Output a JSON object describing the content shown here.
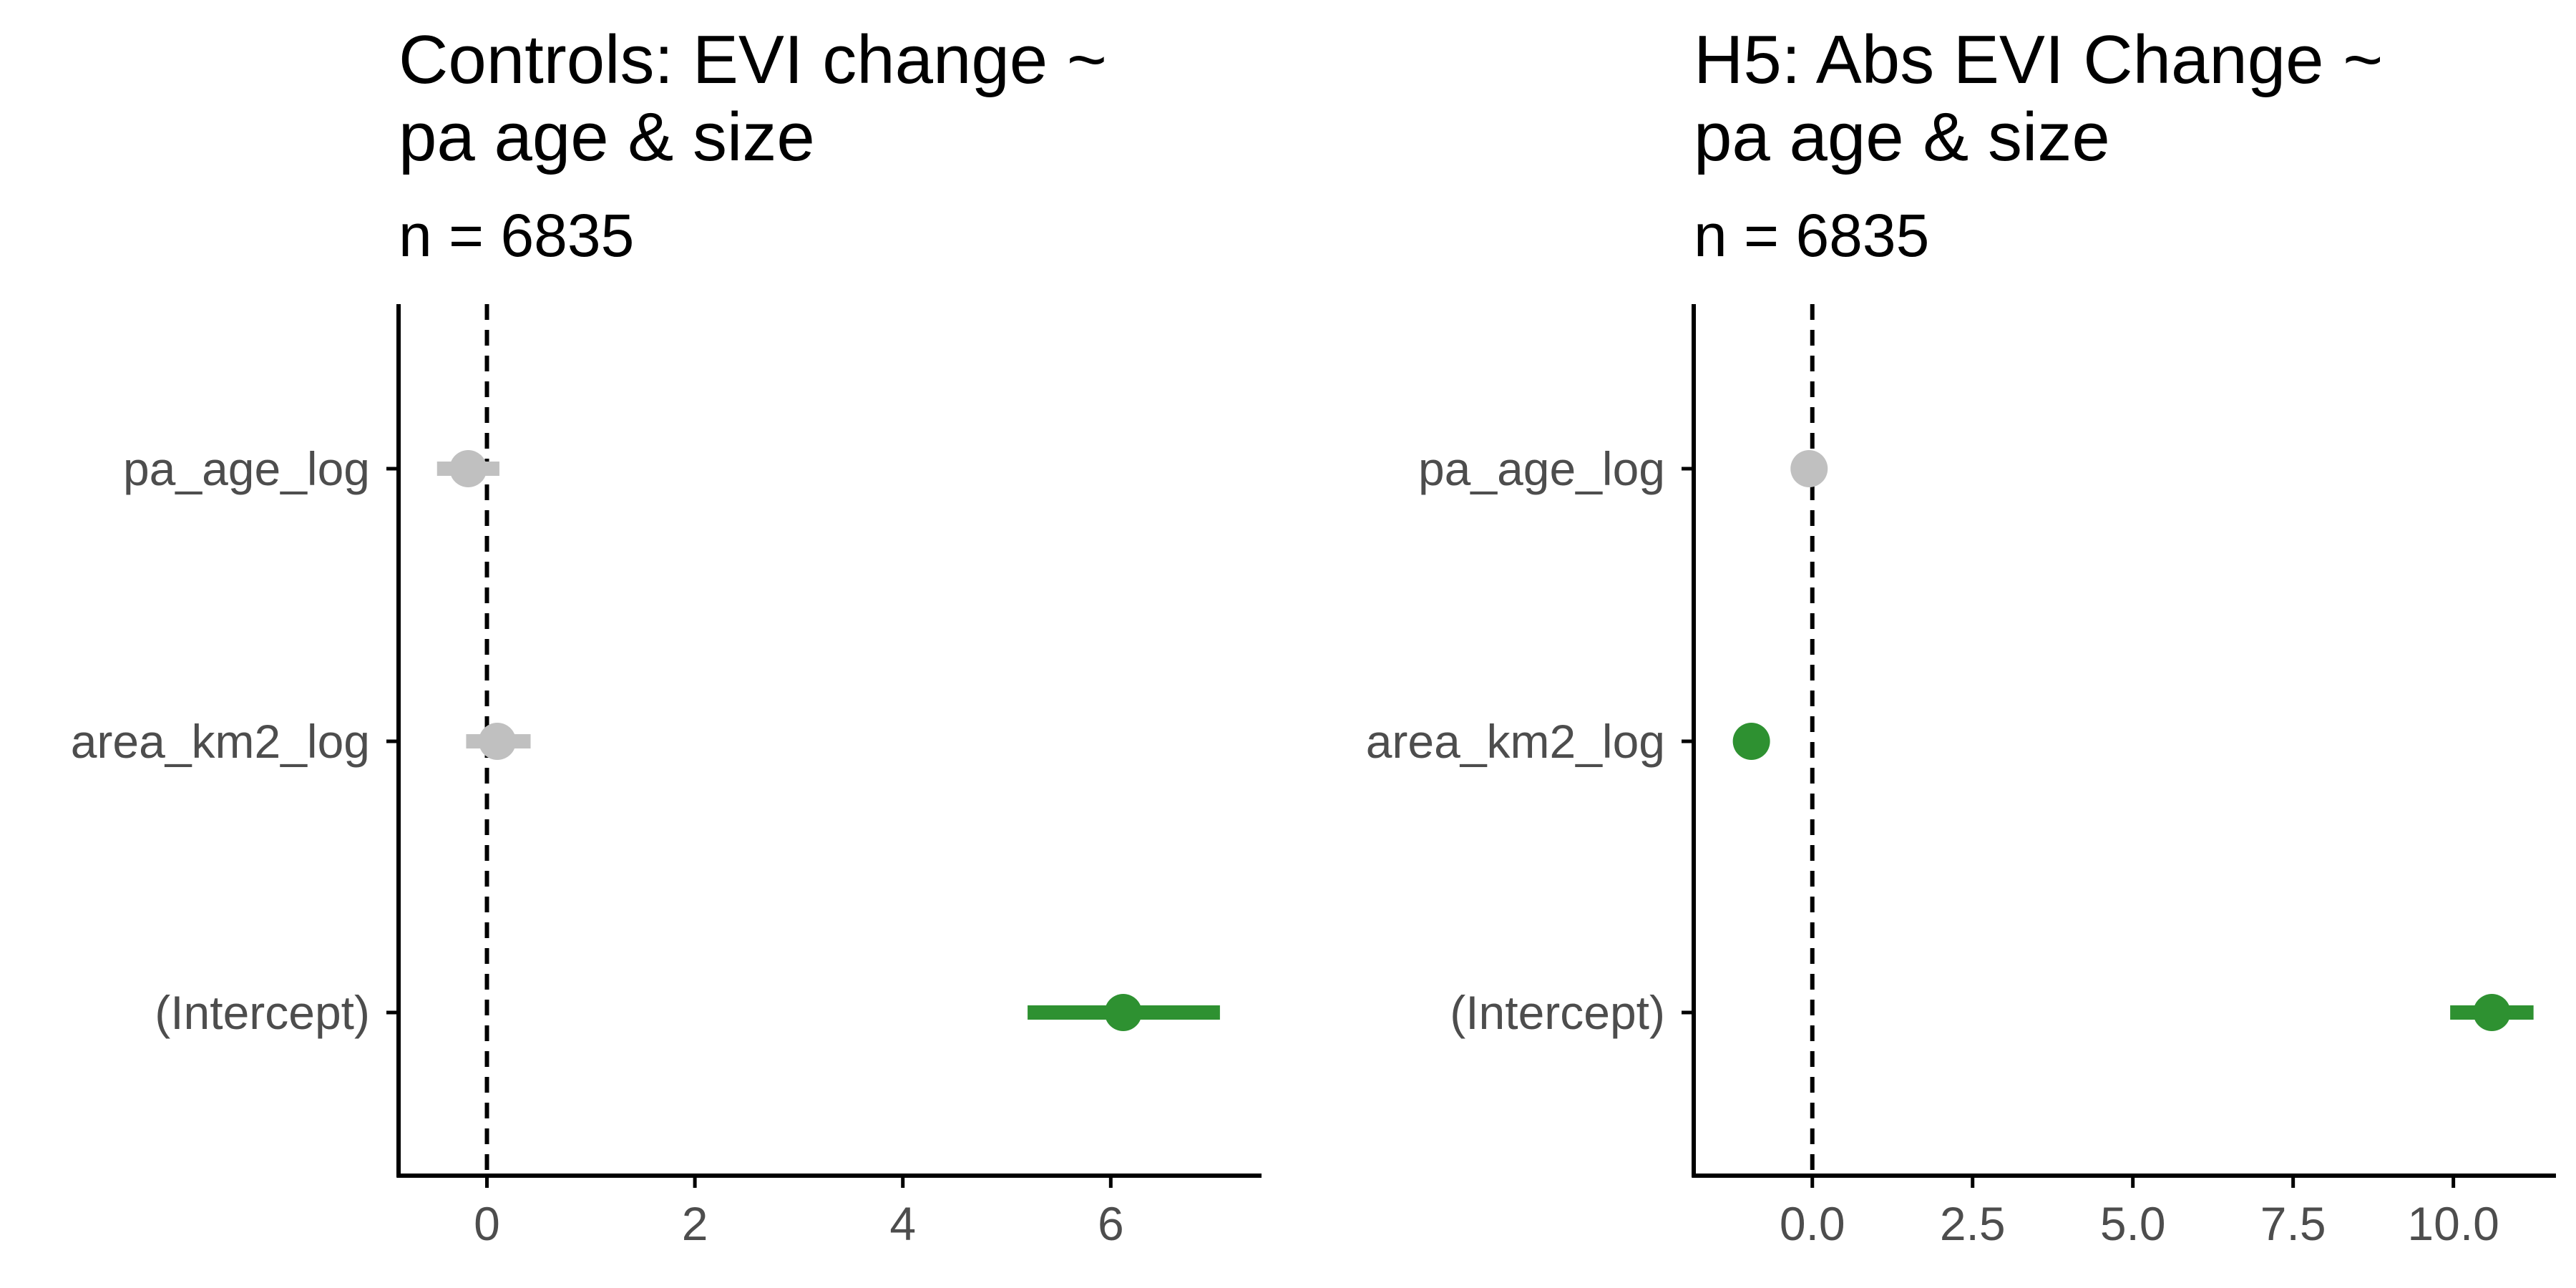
{
  "chart_data": [
    {
      "type": "coefficient-plot",
      "title_lines": [
        "Controls: EVI change ~",
        "pa age & size"
      ],
      "subtitle": "n = 6835",
      "xlabel": "",
      "ylabel": "",
      "xlim": [
        -0.85,
        7.45
      ],
      "x_ticks": [
        0,
        2,
        4,
        6
      ],
      "x_tick_labels": [
        "0",
        "2",
        "4",
        "6"
      ],
      "reference_line": 0,
      "grid": false,
      "terms": [
        {
          "label": "pa_age_log",
          "estimate": -0.18,
          "ci_low": -0.48,
          "ci_high": 0.12,
          "significant": false
        },
        {
          "label": "area_km2_log",
          "estimate": 0.1,
          "ci_low": -0.2,
          "ci_high": 0.42,
          "significant": false
        },
        {
          "label": "(Intercept)",
          "estimate": 6.12,
          "ci_low": 5.2,
          "ci_high": 7.05,
          "significant": true
        }
      ]
    },
    {
      "type": "coefficient-plot",
      "title_lines": [
        "H5: Abs EVI Change ~",
        "pa age & size"
      ],
      "subtitle": "n = 6835",
      "xlabel": "",
      "ylabel": "",
      "xlim": [
        -1.85,
        11.6
      ],
      "x_ticks": [
        0,
        2.5,
        5,
        7.5,
        10
      ],
      "x_tick_labels": [
        "0.0",
        "2.5",
        "5.0",
        "7.5",
        "10.0"
      ],
      "reference_line": 0,
      "grid": false,
      "terms": [
        {
          "label": "pa_age_log",
          "estimate": -0.05,
          "ci_low": -0.12,
          "ci_high": 0.02,
          "significant": false
        },
        {
          "label": "area_km2_log",
          "estimate": -0.95,
          "ci_low": -1.1,
          "ci_high": -0.8,
          "significant": true
        },
        {
          "label": "(Intercept)",
          "estimate": 10.6,
          "ci_low": 9.95,
          "ci_high": 11.25,
          "significant": true
        }
      ]
    }
  ],
  "colors": {
    "significant": "#2e9131",
    "not_significant": "#c0c0c0",
    "axis": "#000000",
    "tick_label": "#4d4d4d",
    "reference_line": "#000000"
  }
}
